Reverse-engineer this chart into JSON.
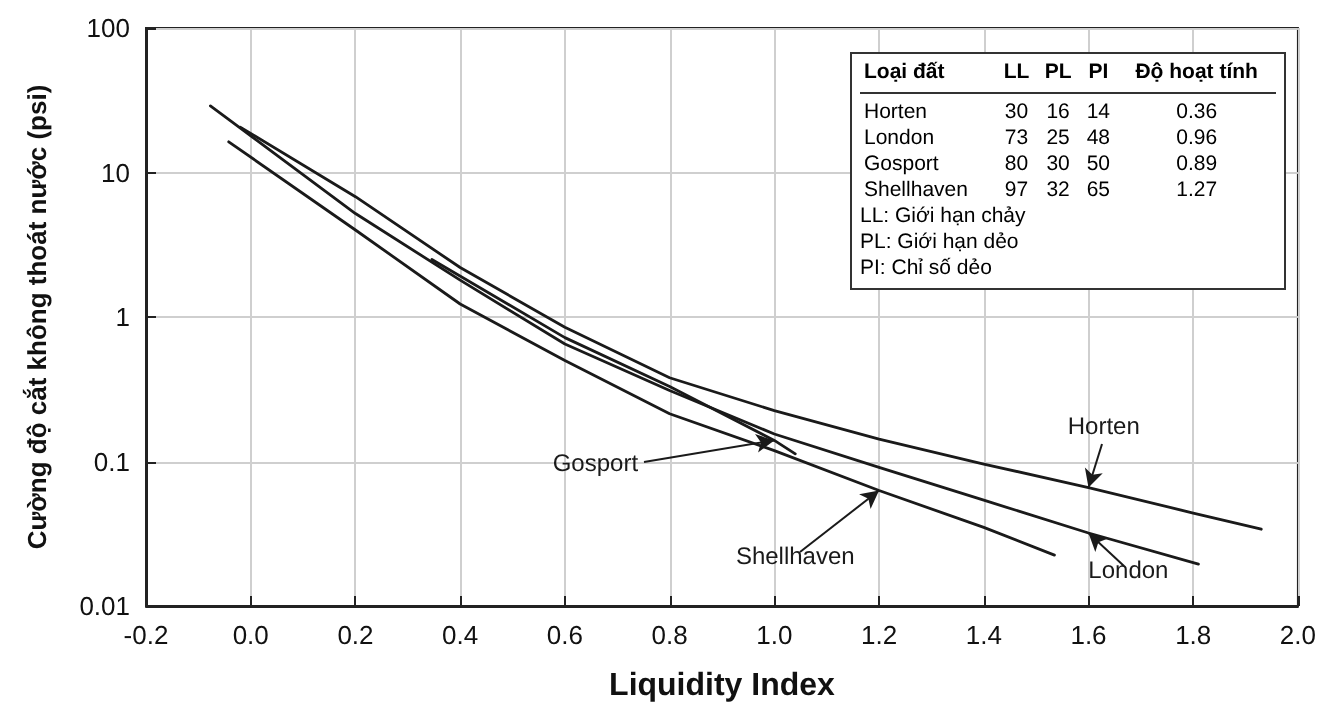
{
  "chart_data": {
    "type": "line",
    "xlabel": "Liquidity Index",
    "ylabel": "Cường độ cắt không thoát nước (psi)",
    "xlim": [
      -0.2,
      2.0
    ],
    "xticks": [
      -0.2,
      {
        "value": 0,
        "label": "0.0"
      },
      0.2,
      0.4,
      0.6,
      0.8,
      {
        "value": 1,
        "label": "1.0"
      },
      1.2,
      1.4,
      1.6,
      1.8,
      {
        "value": 2,
        "label": "2.0"
      }
    ],
    "ylim": [
      0.01,
      100
    ],
    "yticks": [
      0.01,
      0.1,
      1,
      10,
      100
    ],
    "log": true,
    "grid": true,
    "series": [
      {
        "name": "Horten",
        "color": "#1a1a1a",
        "x": [
          -0.02,
          0.2,
          0.4,
          0.6,
          0.8,
          1.0,
          1.2,
          1.4,
          1.6,
          1.8,
          1.93
        ],
        "values": [
          20.6,
          6.8,
          2.2,
          0.85,
          0.38,
          0.225,
          0.143,
          0.096,
          0.066,
          0.044,
          0.034
        ]
      },
      {
        "name": "London",
        "color": "#1a1a1a",
        "x": [
          -0.077,
          0.2,
          0.4,
          0.6,
          0.8,
          1.0,
          1.2,
          1.4,
          1.6,
          1.81
        ],
        "values": [
          28.9,
          5.2,
          1.8,
          0.65,
          0.31,
          0.155,
          0.091,
          0.054,
          0.032,
          0.0195
        ]
      },
      {
        "name": "Gosport",
        "color": "#1a1a1a",
        "x": [
          0.346,
          0.6,
          0.8,
          1.0,
          1.04
        ],
        "values": [
          2.5,
          0.72,
          0.33,
          0.14,
          0.113
        ]
      },
      {
        "name": "Shellhaven",
        "color": "#1a1a1a",
        "x": [
          -0.042,
          0.2,
          0.4,
          0.6,
          0.8,
          1.0,
          1.2,
          1.4,
          1.535
        ],
        "values": [
          16.3,
          4.0,
          1.23,
          0.5,
          0.214,
          0.119,
          0.063,
          0.035,
          0.0225
        ]
      }
    ],
    "annotations": [
      "Loại đất",
      "LL",
      "PL",
      "PI",
      "Độ hoạt tính",
      "Horten",
      "30",
      "16",
      "14",
      "0.36",
      "London",
      "73",
      "25",
      "48",
      "0.96",
      "Gosport",
      "80",
      "30",
      "50",
      "0.89",
      "Shellhaven",
      "97",
      "32",
      "65",
      "1.27",
      "LL: Giới hạn chảy",
      "PL: Giới hạn dẻo",
      "PI: Chỉ số dẻo"
    ]
  }
}
